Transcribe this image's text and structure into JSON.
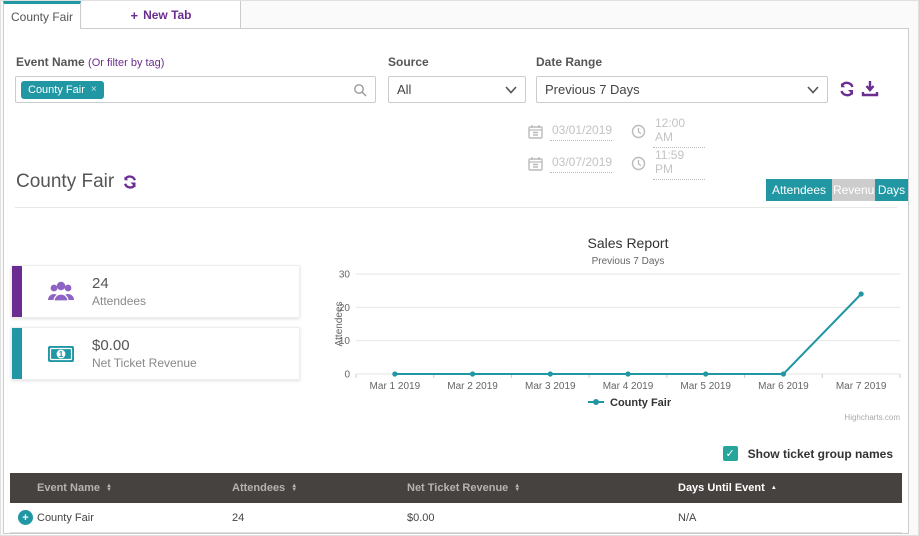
{
  "tabs": {
    "active_label": "County Fair",
    "new_tab_label": "New Tab",
    "plus_glyph": "+"
  },
  "filters": {
    "event_name_label": "Event Name",
    "event_name_hint": "(Or filter by tag)",
    "tag_value": "County Fair",
    "tag_remove_glyph": "×",
    "source_label": "Source",
    "source_value": "All",
    "date_range_label": "Date Range",
    "date_range_value": "Previous 7 Days",
    "start_date": "03/01/2019",
    "start_time": "12:00 AM",
    "end_date": "03/07/2019",
    "end_time": "11:59 PM"
  },
  "section": {
    "title": "County Fair",
    "attendees_button": "Attendees",
    "revenue_button": "Revenue",
    "days_button": "Days"
  },
  "stats": {
    "0": {
      "value": "24",
      "label": "Attendees",
      "color": "#6a2c91"
    },
    "1": {
      "value": "$0.00",
      "label": "Net Ticket Revenue",
      "color": "#2097a3"
    }
  },
  "chart_data": {
    "type": "line",
    "title": "Sales Report",
    "subtitle": "Previous 7 Days",
    "ylabel": "Attendees",
    "xlabel": "",
    "categories": [
      "Mar 1 2019",
      "Mar 2 2019",
      "Mar 3 2019",
      "Mar 4 2019",
      "Mar 5 2019",
      "Mar 6 2019",
      "Mar 7 2019"
    ],
    "series": [
      {
        "name": "County Fair",
        "values": [
          0,
          0,
          0,
          0,
          0,
          0,
          24
        ],
        "color": "#2097a3"
      }
    ],
    "ylim": [
      0,
      30
    ],
    "yticks": [
      0,
      10,
      20,
      30
    ],
    "grid": true,
    "legend_position": "bottom",
    "credits": "Highcharts.com"
  },
  "options": {
    "show_ticket_groups_label": "Show ticket group names",
    "checked": true,
    "check_glyph": "✓"
  },
  "table": {
    "headers": {
      "0": {
        "label": "Event Name"
      },
      "1": {
        "label": "Attendees"
      },
      "2": {
        "label": "Net Ticket Revenue"
      },
      "3": {
        "label": "Days Until Event"
      }
    },
    "rows": {
      "0": {
        "expand_glyph": "+",
        "event_name": "County Fair",
        "attendees": "24",
        "net_ticket_revenue": "$0.00",
        "days_until_event": "N/A"
      }
    }
  },
  "colors": {
    "teal": "#2097a3",
    "purple": "#6b2d90",
    "stat_purple_icon": "#8d64c4",
    "table_header_bg": "#464240",
    "checkbox_green": "#26a69a"
  }
}
